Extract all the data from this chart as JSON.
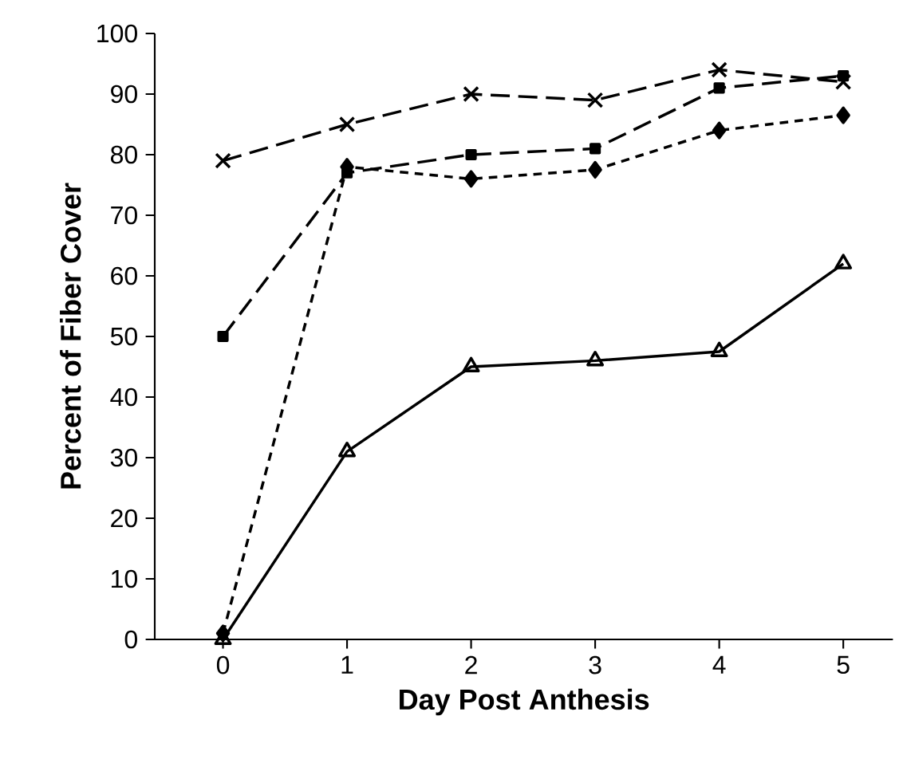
{
  "chart_data": {
    "type": "line",
    "xlabel": "Day Post Anthesis",
    "ylabel": "Percent of Fiber Cover",
    "x": [
      0,
      1,
      2,
      3,
      4,
      5
    ],
    "xlim": [
      -0.55,
      5.4
    ],
    "xticks": [
      0,
      1,
      2,
      3,
      4,
      5
    ],
    "ylim": [
      0,
      100
    ],
    "yticks": [
      0,
      10,
      20,
      30,
      40,
      50,
      60,
      70,
      80,
      90,
      100
    ],
    "series": [
      {
        "color": "#000000",
        "marker": "cross",
        "line_style": "dashed",
        "values": [
          79,
          85,
          90,
          89,
          94,
          92
        ]
      },
      {
        "color": "#000000",
        "marker": "square",
        "line_style": "dashed",
        "values": [
          50,
          77,
          80,
          81,
          91,
          93
        ]
      },
      {
        "color": "#000000",
        "marker": "diamond",
        "line_style": "dotted",
        "values": [
          1,
          78,
          76,
          77.5,
          84,
          86.5
        ]
      },
      {
        "color": "#000000",
        "marker": "triangle",
        "line_style": "solid",
        "values": [
          0,
          31,
          45,
          46,
          47.5,
          62
        ]
      }
    ]
  }
}
